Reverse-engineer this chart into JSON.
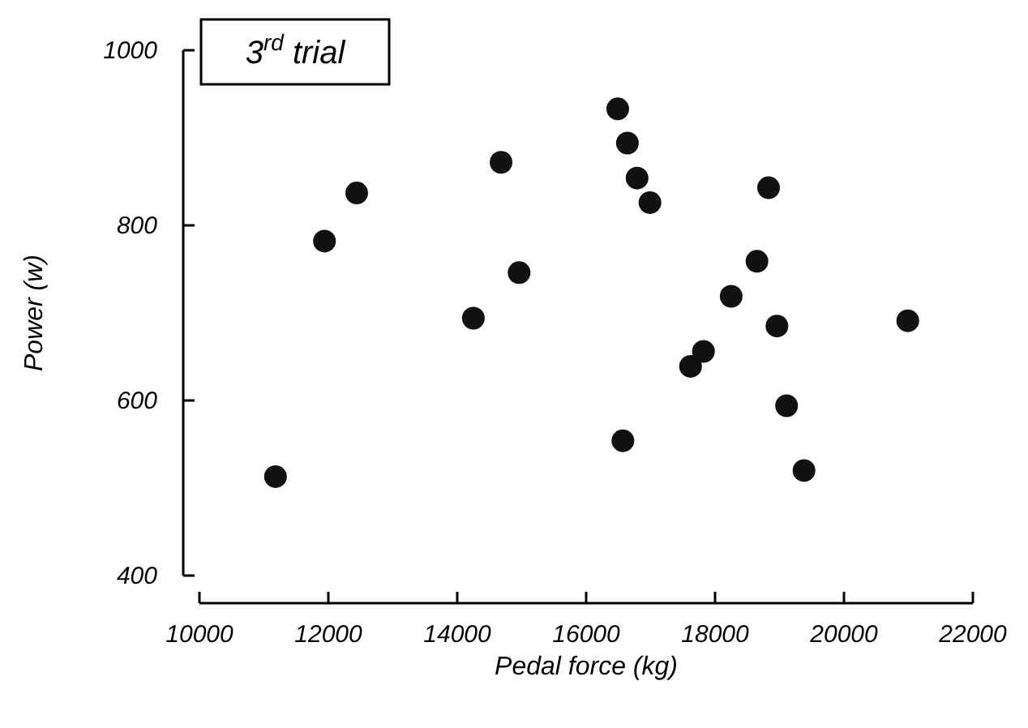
{
  "chart_data": {
    "type": "scatter",
    "title": "3$^{rd}$ trial",
    "xlabel": "Pedal force (kg)",
    "ylabel": "Power (w)",
    "xlim": [
      10000,
      22000
    ],
    "xticks": [
      10000,
      12000,
      14000,
      16000,
      18000,
      20000,
      22000
    ],
    "ylim": [
      400,
      1000
    ],
    "yticks": [
      400,
      600,
      800,
      1000
    ],
    "grid": false,
    "marker": "circle",
    "series": [
      {
        "color": "#111111",
        "x": [
          11180,
          11940,
          12440,
          14250,
          14680,
          14960,
          16490,
          16640,
          16790,
          16990,
          16570,
          17620,
          17820,
          18250,
          18650,
          18830,
          18960,
          19110,
          19380,
          20990
        ],
        "values": [
          513,
          782,
          837,
          694,
          872,
          746,
          933,
          894,
          854,
          826,
          554,
          639,
          656,
          719,
          759,
          843,
          685,
          594,
          520,
          691
        ]
      }
    ]
  }
}
